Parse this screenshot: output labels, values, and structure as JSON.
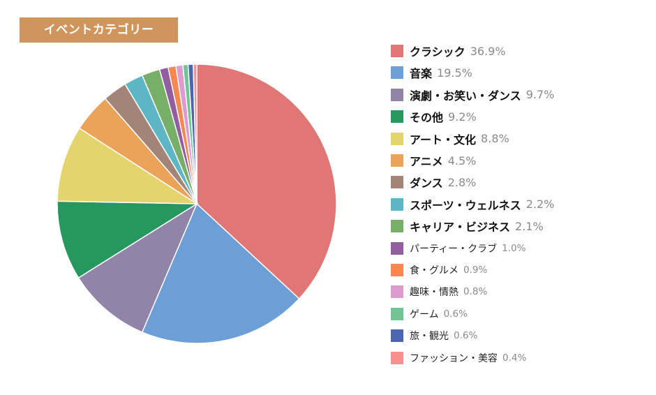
{
  "title": "イベントカテゴリー",
  "chart_data": {
    "type": "pie",
    "title": "イベントカテゴリー",
    "start_angle": "12 o'clock",
    "direction": "clockwise",
    "legend_position": "right",
    "unit": "%",
    "categories": [
      "クラシック",
      "音楽",
      "演劇・お笑い・ダンス",
      "その他",
      "アート・文化",
      "アニメ",
      "ダンス",
      "スポーツ・ウェルネス",
      "キャリア・ビジネス",
      "パーティー・クラブ",
      "食・グルメ",
      "趣味・情熱",
      "ゲーム",
      "旅・観光",
      "ファッション・美容"
    ],
    "values": [
      36.9,
      19.5,
      9.7,
      9.2,
      8.8,
      4.5,
      2.8,
      2.2,
      2.1,
      1.0,
      0.9,
      0.8,
      0.6,
      0.6,
      0.4
    ],
    "colors": [
      "#e07676",
      "#6c9fd6",
      "#9283a8",
      "#26975e",
      "#e5d46e",
      "#eaa358",
      "#a38476",
      "#5cb6c4",
      "#77ae68",
      "#915fa0",
      "#f8884f",
      "#dc9ccf",
      "#70c495",
      "#4c66ae",
      "#f99090"
    ]
  },
  "legend": [
    {
      "label": "クラシック",
      "pct": "36.9%",
      "color": "#e07676",
      "emphasis": true
    },
    {
      "label": "音楽",
      "pct": "19.5%",
      "color": "#6c9fd6",
      "emphasis": true
    },
    {
      "label": "演劇・お笑い・ダンス",
      "pct": "9.7%",
      "color": "#9283a8",
      "emphasis": true
    },
    {
      "label": "その他",
      "pct": "9.2%",
      "color": "#26975e",
      "emphasis": true
    },
    {
      "label": "アート・文化",
      "pct": "8.8%",
      "color": "#e5d46e",
      "emphasis": true
    },
    {
      "label": "アニメ",
      "pct": "4.5%",
      "color": "#eaa358",
      "emphasis": true
    },
    {
      "label": "ダンス",
      "pct": "2.8%",
      "color": "#a38476",
      "emphasis": true
    },
    {
      "label": "スポーツ・ウェルネス",
      "pct": "2.2%",
      "color": "#5cb6c4",
      "emphasis": true
    },
    {
      "label": "キャリア・ビジネス",
      "pct": "2.1%",
      "color": "#77ae68",
      "emphasis": true
    },
    {
      "label": "パーティー・クラブ",
      "pct": "1.0%",
      "color": "#915fa0",
      "emphasis": false
    },
    {
      "label": "食・グルメ",
      "pct": "0.9%",
      "color": "#f8884f",
      "emphasis": false
    },
    {
      "label": "趣味・情熱",
      "pct": "0.8%",
      "color": "#dc9ccf",
      "emphasis": false
    },
    {
      "label": "ゲーム",
      "pct": "0.6%",
      "color": "#70c495",
      "emphasis": false
    },
    {
      "label": "旅・観光",
      "pct": "0.6%",
      "color": "#4c66ae",
      "emphasis": false
    },
    {
      "label": "ファッション・美容",
      "pct": "0.4%",
      "color": "#f99090",
      "emphasis": false
    }
  ]
}
